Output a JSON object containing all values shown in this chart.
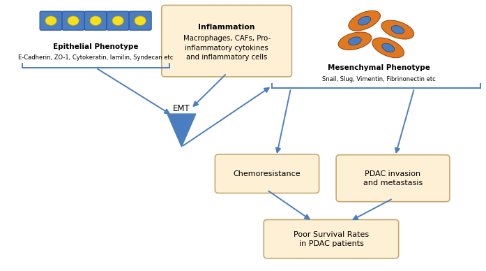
{
  "background_color": "#ffffff",
  "arrow_color": "#4a7ec0",
  "box_fill_color": "#fdf0d5",
  "box_edge_color": "#c8a870",
  "epithelial_cell_fill": "#4a7ec0",
  "epithelial_dot_color": "#f5e020",
  "mesenchymal_cell_fill": "#e07820",
  "mesenchymal_nucleus_color": "#4a7ec0",
  "emt_triangle_color": "#4a7ec0",
  "texts": {
    "epithelial_title": "Epithelial Phenotype",
    "epithelial_subtitle": "E-Cadherin, ZO-1, Cytokeratin, lamilin, Syndecan etc",
    "inflammation_title": "Inflammation",
    "inflammation_body": "Macrophages, CAFs, Pro-\ninflammatory cytokines\nand inflammatory cells",
    "emt_label": "EMT",
    "mesenchymal_title": "Mesenchymal Phenotype",
    "mesenchymal_subtitle": "Snail, Slug, Vimentin, Fibrinonectin etc",
    "chemoresistance": "Chemoresistance",
    "pdac_invasion": "PDAC invasion\nand metastasis",
    "poor_survival": "Poor Survival Rates\nin PDAC patients"
  }
}
